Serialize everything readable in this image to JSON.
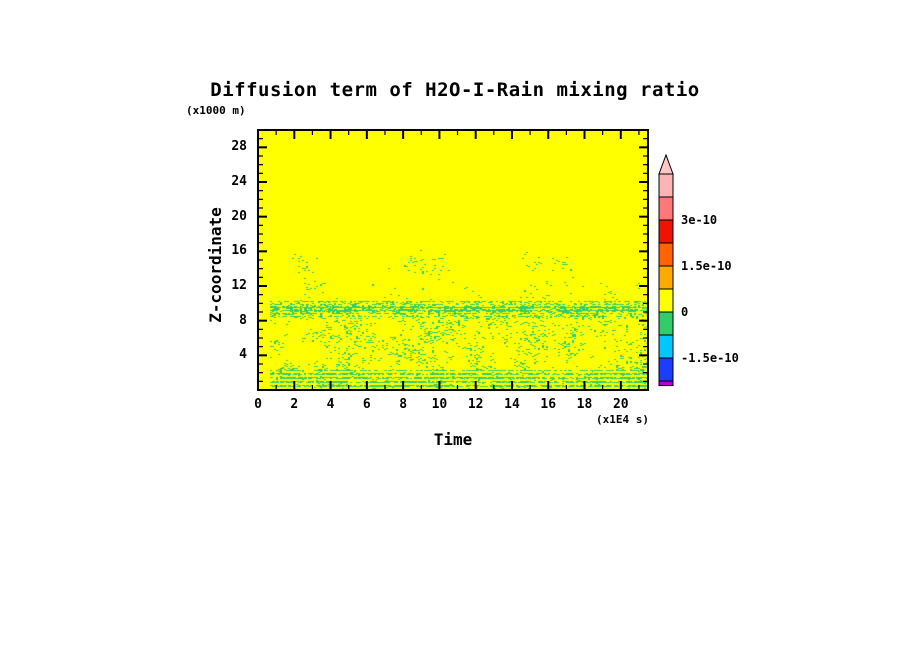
{
  "chart_data": {
    "type": "heatmap",
    "title": "Diffusion term of H2O-I-Rain mixing ratio",
    "xlabel": "Time",
    "x_unit_label": "(x1E4 s)",
    "ylabel": "Z-coordinate",
    "y_unit_label": "(x1000 m)",
    "x_range": [
      0,
      21.5
    ],
    "y_range": [
      0,
      30
    ],
    "x_ticks_major": [
      0,
      2,
      4,
      6,
      8,
      10,
      12,
      14,
      16,
      18,
      20
    ],
    "x_minor_step": 1,
    "y_ticks_major": [
      4,
      8,
      12,
      16,
      20,
      24,
      28
    ],
    "y_minor_step": 1,
    "grid": false,
    "legend_position": "right",
    "field": {
      "background_color": "#ffff00",
      "background_value_band": [
        0,
        7.5e-11
      ],
      "speckle_color": "#33cc66",
      "speckle_value_band": [
        -7.5e-11,
        0
      ],
      "time_onset": 0.5,
      "density_profile": [
        {
          "z_range": [
            0,
            2.4
          ],
          "density": 0.38,
          "pattern": "horizontal-stripes"
        },
        {
          "z_range": [
            2.4,
            8.3
          ],
          "density": 0.17,
          "pattern": "turbulent-clumps"
        },
        {
          "z_range": [
            8.3,
            10.3
          ],
          "density": 0.34,
          "pattern": "dense-horizontal-band"
        },
        {
          "z_range": [
            10.3,
            12.6
          ],
          "density": 0.07,
          "pattern": "sparse-clumps"
        },
        {
          "z_range": [
            12.6,
            16.5
          ],
          "density": 0.015,
          "pattern": "intermittent-wisps"
        },
        {
          "z_range": [
            16.5,
            30
          ],
          "density": 0.0,
          "pattern": "none"
        }
      ],
      "description": "Field is almost everywhere yellow (values in the 0..7.5e-11 band). Green speckles (slightly negative band -7.5e-11..0) fill the turbulent layer below z=12-16 km, densest in a horizontal band near z=9-10, striped near the surface, intermittent wisps near z=14-16, and absent before t=0.5."
    },
    "colorbar": {
      "segments_bottom_to_top": [
        {
          "color": "#b400c8",
          "range": [
            -2.4e-10,
            -2.25e-10
          ]
        },
        {
          "color": "#1e3cff",
          "range": [
            -2.25e-10,
            -1.5e-10
          ]
        },
        {
          "color": "#00c8ff",
          "range": [
            -1.5e-10,
            -7.5e-11
          ]
        },
        {
          "color": "#33cc66",
          "range": [
            -7.5e-11,
            0
          ]
        },
        {
          "color": "#ffff00",
          "range": [
            0,
            7.5e-11
          ]
        },
        {
          "color": "#ffaa00",
          "range": [
            7.5e-11,
            1.5e-10
          ]
        },
        {
          "color": "#ff6400",
          "range": [
            1.5e-10,
            2.25e-10
          ]
        },
        {
          "color": "#ee1400",
          "range": [
            2.25e-10,
            3e-10
          ]
        },
        {
          "color": "#ff7878",
          "range": [
            3e-10,
            3.75e-10
          ]
        },
        {
          "color": "#ffb4b4",
          "range": [
            3.75e-10,
            4.5e-10
          ]
        }
      ],
      "arrow_color": "#ffc8c8",
      "labels": [
        {
          "text": "3e-10",
          "value": 3e-10
        },
        {
          "text": "1.5e-10",
          "value": 1.5e-10
        },
        {
          "text": "0",
          "value": 0
        },
        {
          "text": "-1.5e-10",
          "value": -1.5e-10
        }
      ]
    }
  }
}
